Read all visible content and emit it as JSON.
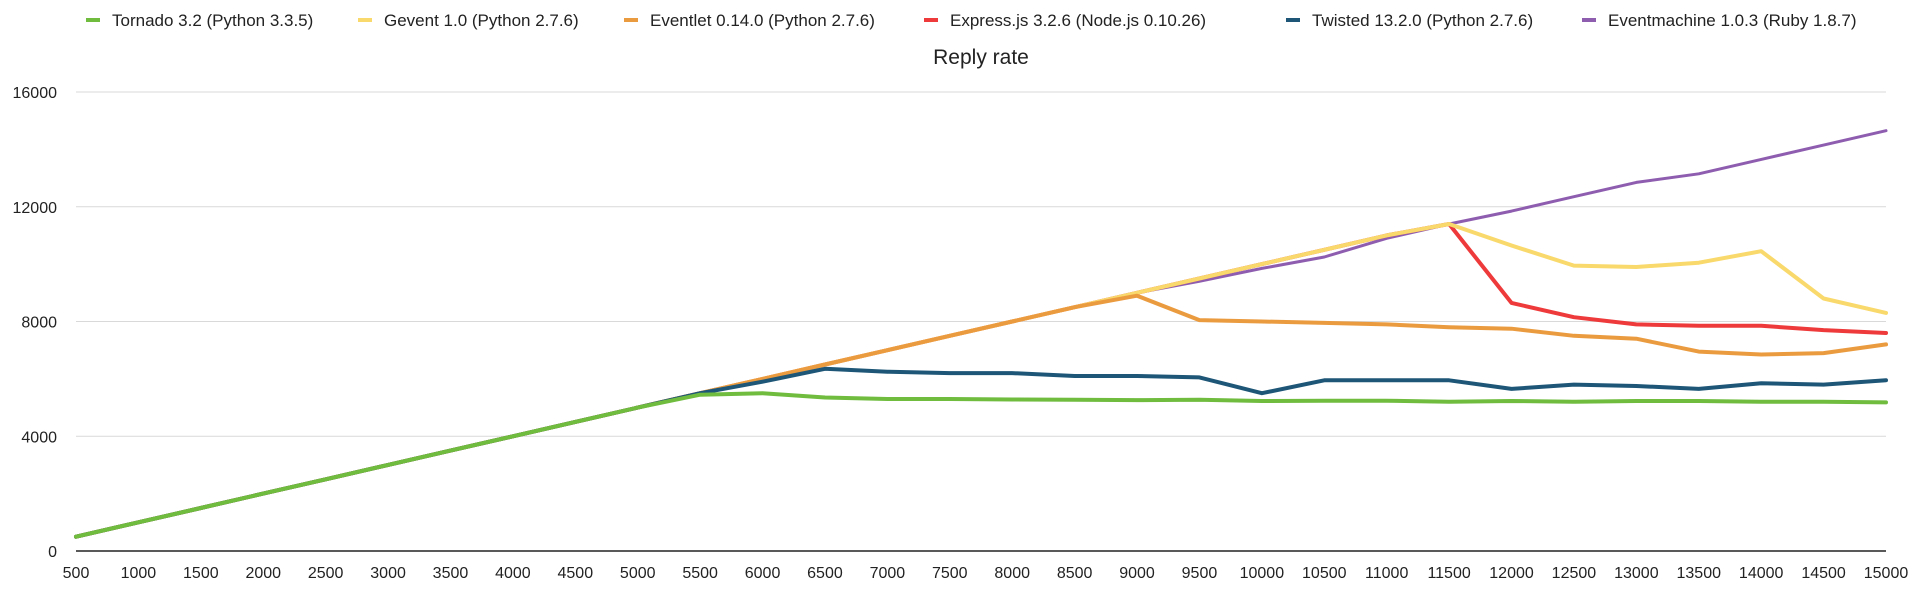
{
  "chart_data": {
    "type": "line",
    "title": "Reply rate",
    "xlabel": "",
    "ylabel": "",
    "legend_position": "top",
    "grid": true,
    "ylim": [
      0,
      16000
    ],
    "yticks": [
      0,
      4000,
      8000,
      12000,
      16000
    ],
    "xlim": [
      500,
      15000
    ],
    "x": [
      500,
      1000,
      1500,
      2000,
      2500,
      3000,
      3500,
      4000,
      4500,
      5000,
      5500,
      6000,
      6500,
      7000,
      7500,
      8000,
      8500,
      9000,
      9500,
      10000,
      10500,
      11000,
      11500,
      12000,
      12500,
      13000,
      13500,
      14000,
      14500,
      15000
    ],
    "series": [
      {
        "name": "Eventmachine 1.0.3 (Ruby 1.8.7)",
        "color": "#8e5db0",
        "width": 3,
        "values": [
          500,
          1000,
          1500,
          2000,
          2500,
          3000,
          3500,
          4000,
          4500,
          5000,
          5500,
          6000,
          6500,
          7000,
          7500,
          8000,
          8500,
          9000,
          9400,
          9850,
          10250,
          10900,
          11400,
          11850,
          12350,
          12850,
          13150,
          13650,
          14150,
          14650
        ]
      },
      {
        "name": "Express.js 3.2.6 (Node.js 0.10.26)",
        "color": "#ee3a3a",
        "width": 4,
        "values": [
          500,
          1000,
          1500,
          2000,
          2500,
          3000,
          3500,
          4000,
          4500,
          5000,
          5500,
          6000,
          6500,
          7000,
          7500,
          8000,
          8500,
          9000,
          9500,
          10000,
          10500,
          11000,
          11400,
          8650,
          8150,
          7900,
          7850,
          7850,
          7700,
          7600
        ]
      },
      {
        "name": "Gevent 1.0 (Python 2.7.6)",
        "color": "#f9d96b",
        "width": 4,
        "values": [
          500,
          1000,
          1500,
          2000,
          2500,
          3000,
          3500,
          4000,
          4500,
          5000,
          5500,
          6000,
          6500,
          7000,
          7500,
          8000,
          8500,
          9000,
          9500,
          10000,
          10500,
          11000,
          11400,
          10650,
          9950,
          9900,
          10050,
          10450,
          8800,
          8300
        ]
      },
      {
        "name": "Eventlet 0.14.0 (Python 2.7.6)",
        "color": "#eb9b3f",
        "width": 4,
        "values": [
          500,
          1000,
          1500,
          2000,
          2500,
          3000,
          3500,
          4000,
          4500,
          5000,
          5500,
          6000,
          6500,
          7000,
          7500,
          8000,
          8500,
          8900,
          8050,
          8000,
          7950,
          7900,
          7800,
          7750,
          7500,
          7400,
          6950,
          6850,
          6900,
          7200
        ]
      },
      {
        "name": "Twisted 13.2.0 (Python 2.7.6)",
        "color": "#1d5677",
        "width": 4,
        "values": [
          500,
          1000,
          1500,
          2000,
          2500,
          3000,
          3500,
          4000,
          4500,
          5000,
          5500,
          5900,
          6350,
          6250,
          6200,
          6200,
          6100,
          6100,
          6050,
          5500,
          5950,
          5950,
          5950,
          5650,
          5800,
          5750,
          5650,
          5850,
          5800,
          5950
        ]
      },
      {
        "name": "Tornado 3.2 (Python 3.3.5)",
        "color": "#6fbc3f",
        "width": 4,
        "values": [
          500,
          1000,
          1500,
          2000,
          2500,
          3000,
          3500,
          4000,
          4500,
          5000,
          5450,
          5500,
          5350,
          5300,
          5300,
          5280,
          5270,
          5260,
          5270,
          5230,
          5240,
          5240,
          5200,
          5230,
          5200,
          5230,
          5230,
          5200,
          5200,
          5180
        ]
      }
    ],
    "legend_order": [
      "Tornado 3.2 (Python 3.3.5)",
      "Gevent 1.0 (Python 2.7.6)",
      "Eventlet 0.14.0 (Python 2.7.6)",
      "Express.js 3.2.6 (Node.js 0.10.26)",
      "Twisted 13.2.0 (Python 2.7.6)",
      "Eventmachine 1.0.3 (Ruby 1.8.7)"
    ]
  }
}
